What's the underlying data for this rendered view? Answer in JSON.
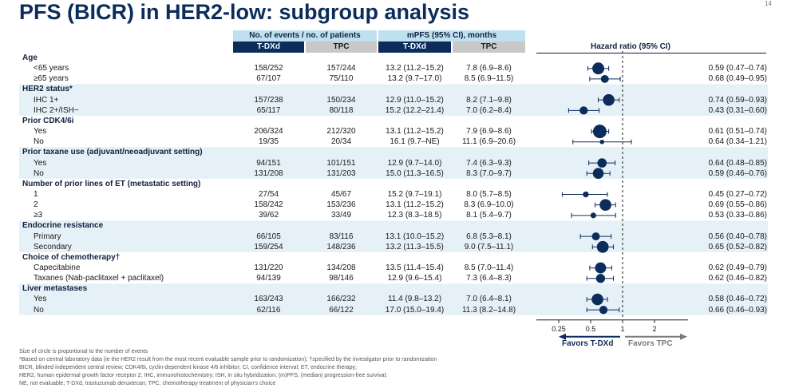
{
  "title": "PFS (BICR) in HER2-low: subgroup analysis",
  "page_number": "14",
  "headers": {
    "events": "No. of events / no. of patients",
    "mpfs": "mPFS (95% CI), months",
    "tdxd": "T-DXd",
    "tpc": "TPC",
    "hazard_ratio": "Hazard ratio (95% CI)"
  },
  "colors": {
    "navy": "#0c2c5c",
    "light_blue": "#bfe1ef",
    "grey_header": "#c8c8c8",
    "band": "#e6f0f7",
    "marker": "#0c2c5c"
  },
  "chart_data": {
    "type": "forest",
    "title": "PFS (BICR) in HER2-low: subgroup analysis",
    "xlabel": "Hazard ratio (95% CI)",
    "x_scale": "log",
    "x_ticks": [
      0.25,
      0.5,
      1,
      2
    ],
    "x_tick_labels": [
      "0.25",
      "0.5",
      "1",
      "2"
    ],
    "xlim": [
      0.25,
      2.8
    ],
    "reference_line": 1,
    "favors_left": "Favors T-DXd",
    "favors_right": "Favors TPC",
    "groups": [
      {
        "label": "Age",
        "rows": [
          {
            "label": "<65 years",
            "tdxd": "158/252",
            "tpc": "157/244",
            "mpfs_tdxd": "13.2 (11.2–15.2)",
            "mpfs_tpc": "7.8 (6.9–8.6)",
            "hr": 0.59,
            "lo": 0.47,
            "hi": 0.74,
            "hr_text": "0.59 (0.47–0.74)",
            "n": 496
          },
          {
            "label": "≥65 years",
            "tdxd": "67/107",
            "tpc": "75/110",
            "mpfs_tdxd": "13.2 (9.7–17.0)",
            "mpfs_tpc": "8.5 (6.9–11.5)",
            "hr": 0.68,
            "lo": 0.49,
            "hi": 0.95,
            "hr_text": "0.68 (0.49–0.95)",
            "n": 217
          }
        ]
      },
      {
        "label": "HER2 status*",
        "rows": [
          {
            "label": "IHC 1+",
            "tdxd": "157/238",
            "tpc": "150/234",
            "mpfs_tdxd": "12.9 (11.0–15.2)",
            "mpfs_tpc": "8.2 (7.1–9.8)",
            "hr": 0.74,
            "lo": 0.59,
            "hi": 0.93,
            "hr_text": "0.74 (0.59–0.93)",
            "n": 472
          },
          {
            "label": "IHC 2+/ISH−",
            "tdxd": "65/117",
            "tpc": "80/118",
            "mpfs_tdxd": "15.2 (12.2–21.4)",
            "mpfs_tpc": "7.0 (6.2–8.4)",
            "hr": 0.43,
            "lo": 0.31,
            "hi": 0.6,
            "hr_text": "0.43 (0.31–0.60)",
            "n": 235
          }
        ]
      },
      {
        "label": "Prior CDK4/6i",
        "rows": [
          {
            "label": "Yes",
            "tdxd": "206/324",
            "tpc": "212/320",
            "mpfs_tdxd": "13.1 (11.2–15.2)",
            "mpfs_tpc": "7.9 (6.9–8.6)",
            "hr": 0.61,
            "lo": 0.51,
            "hi": 0.74,
            "hr_text": "0.61 (0.51–0.74)",
            "n": 644
          },
          {
            "label": "No",
            "tdxd": "19/35",
            "tpc": "20/34",
            "mpfs_tdxd": "16.1 (9.7–NE)",
            "mpfs_tpc": "11.1 (6.9–20.6)",
            "hr": 0.64,
            "lo": 0.34,
            "hi": 1.21,
            "hr_text": "0.64 (0.34–1.21)",
            "n": 69
          }
        ]
      },
      {
        "label": "Prior taxane use (adjuvant/neoadjuvant setting)",
        "rows": [
          {
            "label": "Yes",
            "tdxd": "94/151",
            "tpc": "101/151",
            "mpfs_tdxd": "12.9 (9.7–14.0)",
            "mpfs_tpc": "7.4 (6.3–9.3)",
            "hr": 0.64,
            "lo": 0.48,
            "hi": 0.85,
            "hr_text": "0.64 (0.48–0.85)",
            "n": 302
          },
          {
            "label": "No",
            "tdxd": "131/208",
            "tpc": "131/203",
            "mpfs_tdxd": "15.0 (11.3–16.5)",
            "mpfs_tpc": "8.3 (7.0–9.7)",
            "hr": 0.59,
            "lo": 0.46,
            "hi": 0.76,
            "hr_text": "0.59 (0.46–0.76)",
            "n": 411
          }
        ]
      },
      {
        "label": "Number of prior lines of ET (metastatic setting)",
        "rows": [
          {
            "label": "1",
            "tdxd": "27/54",
            "tpc": "45/67",
            "mpfs_tdxd": "15.2 (9.7–19.1)",
            "mpfs_tpc": "8.0 (5.7–8.5)",
            "hr": 0.45,
            "lo": 0.27,
            "hi": 0.72,
            "hr_text": "0.45 (0.27–0.72)",
            "n": 121
          },
          {
            "label": "2",
            "tdxd": "158/242",
            "tpc": "153/236",
            "mpfs_tdxd": "13.1 (11.2–15.2)",
            "mpfs_tpc": "8.3 (6.9–10.0)",
            "hr": 0.69,
            "lo": 0.55,
            "hi": 0.86,
            "hr_text": "0.69 (0.55–0.86)",
            "n": 478
          },
          {
            "label": "≥3",
            "tdxd": "39/62",
            "tpc": "33/49",
            "mpfs_tdxd": "12.3 (8.3–18.5)",
            "mpfs_tpc": "8.1 (5.4–9.7)",
            "hr": 0.53,
            "lo": 0.33,
            "hi": 0.86,
            "hr_text": "0.53 (0.33–0.86)",
            "n": 111
          }
        ]
      },
      {
        "label": "Endocrine resistance",
        "rows": [
          {
            "label": "Primary",
            "tdxd": "66/105",
            "tpc": "83/116",
            "mpfs_tdxd": "13.1 (10.0–15.2)",
            "mpfs_tpc": "6.8 (5.3–8.1)",
            "hr": 0.56,
            "lo": 0.4,
            "hi": 0.78,
            "hr_text": "0.56 (0.40–0.78)",
            "n": 221
          },
          {
            "label": "Secondary",
            "tdxd": "159/254",
            "tpc": "148/236",
            "mpfs_tdxd": "13.2 (11.3–15.5)",
            "mpfs_tpc": "9.0 (7.5–11.1)",
            "hr": 0.65,
            "lo": 0.52,
            "hi": 0.82,
            "hr_text": "0.65 (0.52–0.82)",
            "n": 490
          }
        ]
      },
      {
        "label": "Choice of chemotherapy†",
        "rows": [
          {
            "label": "Capecitabine",
            "tdxd": "131/220",
            "tpc": "134/208",
            "mpfs_tdxd": "13.5 (11.4–15.4)",
            "mpfs_tpc": "8.5 (7.0–11.4)",
            "hr": 0.62,
            "lo": 0.49,
            "hi": 0.79,
            "hr_text": "0.62 (0.49–0.79)",
            "n": 428
          },
          {
            "label": "Taxanes (Nab-paclitaxel + paclitaxel)",
            "tdxd": "94/139",
            "tpc": "98/146",
            "mpfs_tdxd": "12.9 (9.6–15.4)",
            "mpfs_tpc": "7.3 (6.4–8.3)",
            "hr": 0.62,
            "lo": 0.46,
            "hi": 0.82,
            "hr_text": "0.62 (0.46–0.82)",
            "n": 285
          }
        ]
      },
      {
        "label": "Liver metastases",
        "rows": [
          {
            "label": "Yes",
            "tdxd": "163/243",
            "tpc": "166/232",
            "mpfs_tdxd": "11.4 (9.8–13.2)",
            "mpfs_tpc": "7.0 (6.4–8.1)",
            "hr": 0.58,
            "lo": 0.46,
            "hi": 0.72,
            "hr_text": "0.58 (0.46–0.72)",
            "n": 475
          },
          {
            "label": "No",
            "tdxd": "62/116",
            "tpc": "66/122",
            "mpfs_tdxd": "17.0 (15.0–19.4)",
            "mpfs_tpc": "11.3 (8.2–14.8)",
            "hr": 0.66,
            "lo": 0.46,
            "hi": 0.93,
            "hr_text": "0.66 (0.46–0.93)",
            "n": 238
          }
        ]
      }
    ]
  },
  "footnotes": [
    "Size of circle is proportional to the number of events",
    "*Based on central laboratory data (ie the HER2 result from the most recent evaluable sample prior to randomization); †specified by the investigator prior to randomization",
    "BICR, blinded independent central review; CDK4/6i, cyclin-dependent kinase 4/6 inhibitor; CI, confidence interval; ET, endocrine therapy;",
    "HER2, human epidermal growth factor receptor 2; IHC, immunohistochemistry; ISH, in situ hybridization; (m)PFS, (median) progression-free survival;",
    "NE, not evaluable; T-DXd, trastuzumab deruxtecan; TPC, chemotherapy treatment of physician’s choice"
  ]
}
